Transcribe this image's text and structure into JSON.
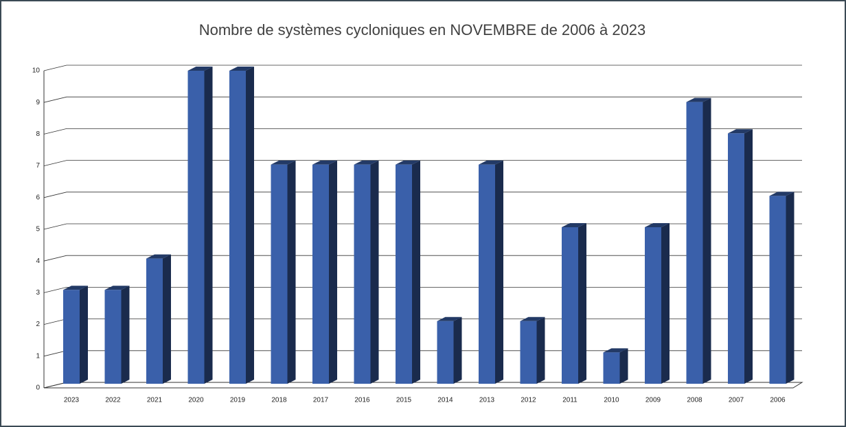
{
  "chart_data": {
    "type": "bar",
    "title": "Nombre de systèmes cycloniques en NOVEMBRE de 2006 à 2023",
    "categories": [
      "2023",
      "2022",
      "2021",
      "2020",
      "2019",
      "2018",
      "2017",
      "2016",
      "2015",
      "2014",
      "2013",
      "2012",
      "2011",
      "2010",
      "2009",
      "2008",
      "2007",
      "2006"
    ],
    "values": [
      3,
      3,
      4,
      10,
      10,
      7,
      7,
      7,
      7,
      2,
      7,
      2,
      5,
      1,
      5,
      9,
      8,
      6
    ],
    "color": "#3a60aa",
    "ylim": [
      0,
      10
    ],
    "yticks": [
      0,
      1,
      2,
      3,
      4,
      5,
      6,
      7,
      8,
      9,
      10
    ],
    "grid": true
  }
}
